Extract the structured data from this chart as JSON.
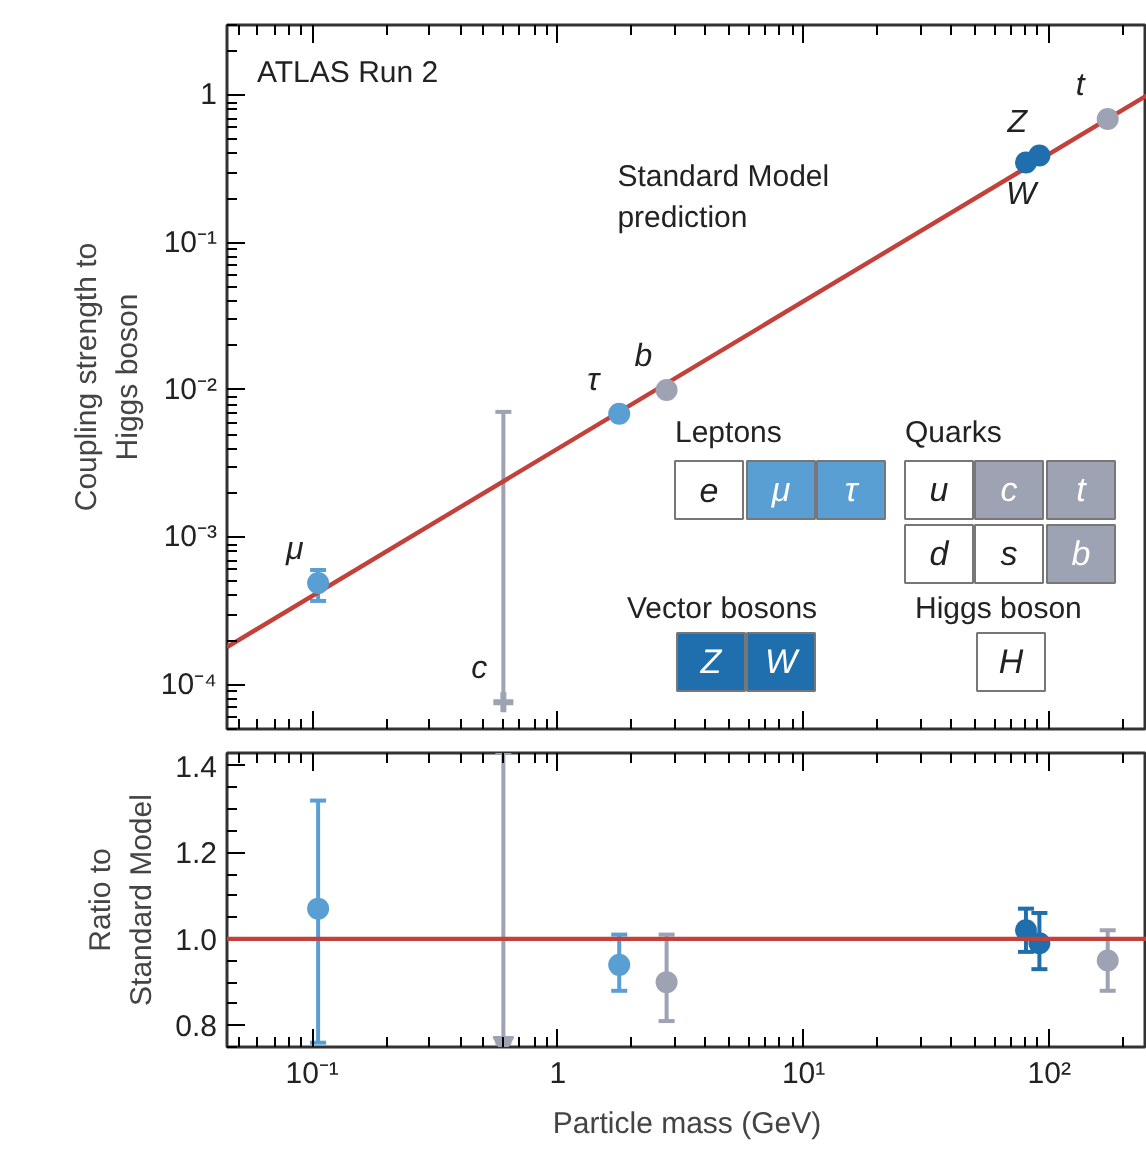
{
  "chart_data": [
    {
      "type": "scatter",
      "ylabel": "Coupling strength to\nHiggs boson",
      "log": "xy",
      "xlim": [
        0.045,
        250
      ],
      "ylim": [
        5e-05,
        3
      ],
      "xticks": [
        {
          "value": 0.1,
          "label": null
        },
        {
          "value": 1,
          "label": null
        },
        {
          "value": 10,
          "label": null
        },
        {
          "value": 100,
          "label": null
        }
      ],
      "yticks": [
        1,
        {
          "value": 0.1,
          "label": "10⁻¹"
        },
        {
          "value": 0.01,
          "label": "10⁻²"
        },
        {
          "value": 0.001,
          "label": "10⁻³"
        },
        {
          "value": 0.0001,
          "label": "10⁻⁴"
        }
      ],
      "tick_labels": "y",
      "grid": false,
      "marker": "circle",
      "series": [
        {
          "type": "line",
          "name": "Standard Model\nprediction",
          "marker": "none",
          "color": "#c2413b",
          "x": [
            0.045,
            250
          ],
          "values": [
            0.00018,
            1.0
          ]
        },
        {
          "color": "#5a9fd4",
          "x": [
            0.1057,
            1.777
          ],
          "values": [
            0.00049,
            0.0069
          ],
          "errors": [
            [
              0.00037,
              0.0006
            ],
            null
          ]
        },
        {
          "color": "#9ea3b3",
          "x": [
            2.77,
            173
          ],
          "values": [
            0.01,
            0.69
          ],
          "errors": [
            null,
            null
          ]
        },
        {
          "color": "#9ea3b3",
          "marker": "cross",
          "x": [
            0.6
          ],
          "values": [
            7.6e-05
          ],
          "errors": [
            [
              7.6e-05,
              0.0071
            ]
          ]
        },
        {
          "color": "#1f6fae",
          "x": [
            80.4,
            91.2
          ],
          "values": [
            0.35,
            0.39
          ]
        }
      ],
      "annotations": [
        "ATLAS Run 2",
        {
          "text": "μ",
          "x": 0.1057,
          "y": 0.00049
        },
        {
          "text": "c",
          "x": 0.6,
          "y": 7.6e-05
        },
        {
          "text": "τ",
          "x": 1.777,
          "y": 0.0069
        },
        {
          "text": "b",
          "x": 2.77,
          "y": 0.01
        },
        {
          "text": "W",
          "x": 80.4,
          "y": 0.35
        },
        {
          "text": "Z",
          "x": 91.2,
          "y": 0.39
        },
        {
          "text": "t",
          "x": 173,
          "y": 0.69
        },
        "Leptons",
        "Quarks",
        "Vector bosons",
        "Higgs boson",
        "e",
        "μ",
        "τ",
        "u",
        "c",
        "t",
        "d",
        "s",
        "b",
        "Z",
        "W",
        "H"
      ]
    },
    {
      "type": "scatter",
      "xlabel": "Particle mass (GeV)",
      "ylabel": "Ratio to\nStandard Model",
      "log": "x",
      "xlim": [
        0.045,
        250
      ],
      "ylim": [
        0.75,
        1.43
      ],
      "xticks": [
        {
          "value": 0.1,
          "label": "10⁻¹"
        },
        1,
        {
          "value": 10,
          "label": "10¹"
        },
        {
          "value": 100,
          "label": "10²"
        }
      ],
      "yticks": [
        0.8,
        {
          "value": 1,
          "label": "1.0"
        },
        1.2,
        1.4
      ],
      "grid": false,
      "marker": "circle",
      "ref_lines": [
        {
          "axis": "y",
          "value": 1,
          "color": "#c2413b"
        }
      ],
      "series": [
        {
          "color": "#5a9fd4",
          "x": [
            0.1057,
            1.777
          ],
          "values": [
            1.07,
            0.94
          ],
          "errors": [
            [
              0.76,
              1.32
            ],
            [
              0.88,
              1.01
            ]
          ]
        },
        {
          "color": "#9ea3b3",
          "x": [
            2.77,
            173
          ],
          "values": [
            0.9,
            0.95
          ],
          "errors": [
            [
              0.81,
              1.01
            ],
            [
              0.88,
              1.02
            ]
          ]
        },
        {
          "color": "#9ea3b3",
          "marker": "triangle",
          "x": [
            0.6
          ],
          "values": [
            0.76
          ],
          "errors": [
            [
              0.76,
              1.43
            ]
          ]
        },
        {
          "color": "#1f6fae",
          "x": [
            80.4,
            91.2
          ],
          "values": [
            1.02,
            0.99
          ],
          "errors": [
            [
              0.97,
              1.07
            ],
            [
              0.93,
              1.06
            ]
          ]
        }
      ]
    }
  ]
}
